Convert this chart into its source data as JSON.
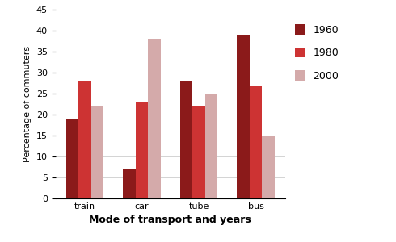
{
  "categories": [
    "train",
    "car",
    "tube",
    "bus"
  ],
  "series": {
    "1960": [
      19,
      7,
      28,
      39
    ],
    "1980": [
      28,
      23,
      22,
      27
    ],
    "2000": [
      22,
      38,
      25,
      15
    ]
  },
  "colors": {
    "1960": "#8B1A1A",
    "1980": "#CD3333",
    "2000": "#D4AAAA"
  },
  "ylabel": "Percentage of commuters",
  "xlabel": "Mode of transport and years",
  "ylim": [
    0,
    45
  ],
  "yticks": [
    0,
    5,
    10,
    15,
    20,
    25,
    30,
    35,
    40,
    45
  ],
  "legend_labels": [
    "1960",
    "1980",
    "2000"
  ],
  "bar_width": 0.22,
  "axis_label_fontsize": 8,
  "tick_fontsize": 8,
  "legend_fontsize": 9,
  "xlabel_fontsize": 9
}
